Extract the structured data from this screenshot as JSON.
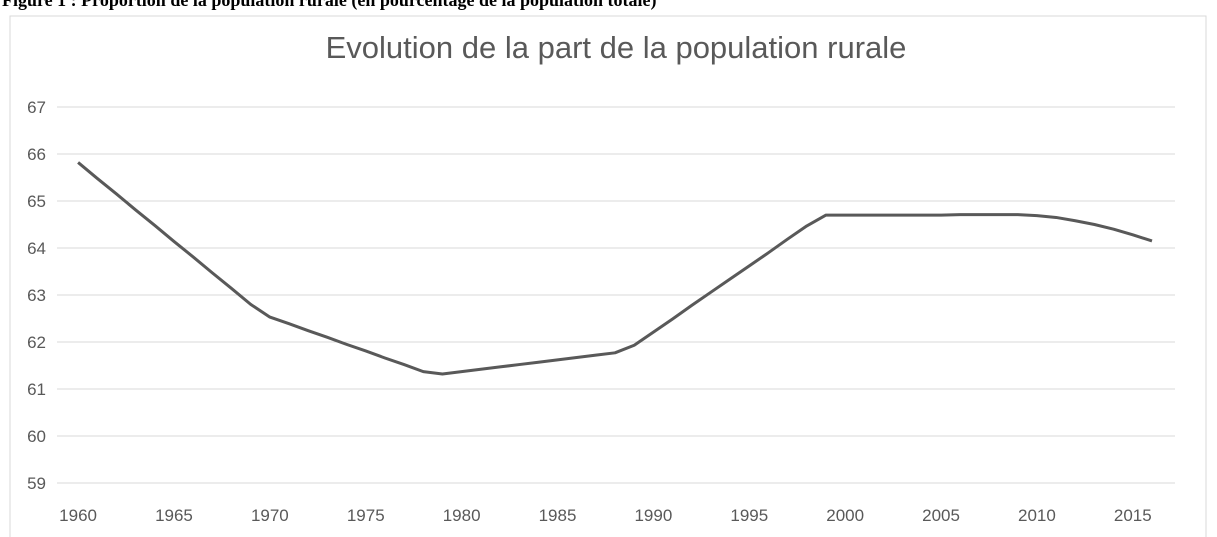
{
  "caption": "Figure 1 : Proportion de la population rurale (en pourcentage de la population totale)",
  "chart_data": {
    "type": "line",
    "title": "Evolution de la part de la population rurale",
    "x": [
      1960,
      1961,
      1962,
      1963,
      1964,
      1965,
      1966,
      1967,
      1968,
      1969,
      1970,
      1971,
      1972,
      1973,
      1974,
      1975,
      1976,
      1977,
      1978,
      1979,
      1980,
      1981,
      1982,
      1983,
      1984,
      1985,
      1986,
      1987,
      1988,
      1989,
      1990,
      1991,
      1992,
      1993,
      1994,
      1995,
      1996,
      1997,
      1998,
      1999,
      2000,
      2001,
      2002,
      2003,
      2004,
      2005,
      2006,
      2007,
      2008,
      2009,
      2010,
      2011,
      2012,
      2013,
      2014,
      2015,
      2016
    ],
    "series": [
      {
        "name": "Population rurale",
        "color": "#595959",
        "values": [
          65.82,
          65.48,
          65.15,
          64.81,
          64.48,
          64.14,
          63.81,
          63.47,
          63.14,
          62.8,
          62.53,
          62.39,
          62.24,
          62.1,
          61.95,
          61.81,
          61.66,
          61.52,
          61.37,
          61.32,
          61.37,
          61.42,
          61.47,
          61.52,
          61.57,
          61.62,
          61.67,
          61.72,
          61.77,
          61.93,
          62.21,
          62.49,
          62.78,
          63.06,
          63.34,
          63.62,
          63.9,
          64.19,
          64.47,
          64.7,
          64.7,
          64.7,
          64.7,
          64.7,
          64.7,
          64.7,
          64.71,
          64.71,
          64.71,
          64.71,
          64.69,
          64.65,
          64.58,
          64.5,
          64.4,
          64.28,
          64.15
        ]
      }
    ],
    "xlim": [
      1958.9,
      2017.2
    ],
    "xticks": [
      1960,
      1965,
      1970,
      1975,
      1980,
      1985,
      1990,
      1995,
      2000,
      2005,
      2010,
      2015
    ],
    "ylim": [
      59,
      67
    ],
    "yticks": [
      59,
      60,
      61,
      62,
      63,
      64,
      65,
      66,
      67
    ],
    "grid": true
  }
}
